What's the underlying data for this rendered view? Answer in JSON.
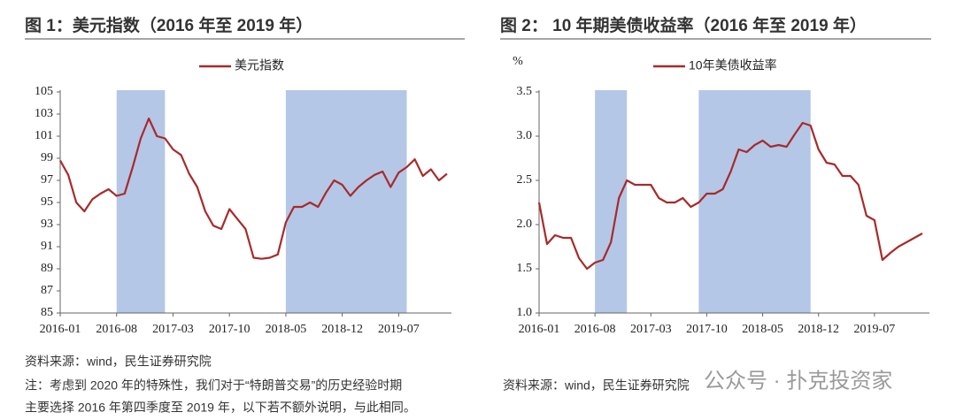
{
  "chart_data": [
    {
      "type": "line",
      "title": "图 1：美元指数（2016 年至 2019 年）",
      "x": [
        "2016-01",
        "2016-02",
        "2016-03",
        "2016-04",
        "2016-05",
        "2016-06",
        "2016-07",
        "2016-08",
        "2016-09",
        "2016-10",
        "2016-11",
        "2016-12",
        "2017-01",
        "2017-02",
        "2017-03",
        "2017-04",
        "2017-05",
        "2017-06",
        "2017-07",
        "2017-08",
        "2017-09",
        "2017-10",
        "2017-11",
        "2017-12",
        "2018-01",
        "2018-02",
        "2018-03",
        "2018-04",
        "2018-05",
        "2018-06",
        "2018-07",
        "2018-08",
        "2018-09",
        "2018-10",
        "2018-11",
        "2018-12",
        "2019-01",
        "2019-02",
        "2019-03",
        "2019-04",
        "2019-05",
        "2019-06",
        "2019-07",
        "2019-08",
        "2019-09",
        "2019-10",
        "2019-11",
        "2019-12",
        "2020-01"
      ],
      "series": [
        {
          "name": "美元指数",
          "color": "#a82a2a",
          "values": [
            98.8,
            97.5,
            95.0,
            94.2,
            95.3,
            95.8,
            96.2,
            95.6,
            95.8,
            98.2,
            100.8,
            102.6,
            101.0,
            100.8,
            99.8,
            99.3,
            97.6,
            96.4,
            94.2,
            92.9,
            92.6,
            94.4,
            93.5,
            92.6,
            90.0,
            89.9,
            90.0,
            90.3,
            93.2,
            94.6,
            94.6,
            95.0,
            94.6,
            95.9,
            97.0,
            96.6,
            95.6,
            96.4,
            97.0,
            97.5,
            97.8,
            96.4,
            97.7,
            98.2,
            98.9,
            97.4,
            98.0,
            97.0,
            97.6
          ]
        }
      ],
      "shaded_periods": [
        {
          "start": "2016-08",
          "end": "2017-02"
        },
        {
          "start": "2018-05",
          "end": "2019-08"
        }
      ],
      "ylim": [
        85,
        105
      ],
      "yticks": [
        85,
        87,
        89,
        91,
        93,
        95,
        97,
        99,
        101,
        103,
        105
      ],
      "xticks": [
        "2016-01",
        "2016-08",
        "2017-03",
        "2017-10",
        "2018-05",
        "2018-12",
        "2019-07"
      ],
      "source": "资料来源：wind，民生证券研究院",
      "note": [
        "注：考虑到 2020 年的特殊性，我们对于“特朗普交易”的历史经验时期",
        "主要选择 2016 年第四季度至 2019 年，以下若不额外说明，与此相同。"
      ]
    },
    {
      "type": "line",
      "title": "图 2：   10 年期美债收益率（2016 年至 2019 年）",
      "y_label": "%",
      "x": [
        "2016-01",
        "2016-02",
        "2016-03",
        "2016-04",
        "2016-05",
        "2016-06",
        "2016-07",
        "2016-08",
        "2016-09",
        "2016-10",
        "2016-11",
        "2016-12",
        "2017-01",
        "2017-02",
        "2017-03",
        "2017-04",
        "2017-05",
        "2017-06",
        "2017-07",
        "2017-08",
        "2017-09",
        "2017-10",
        "2017-11",
        "2017-12",
        "2018-01",
        "2018-02",
        "2018-03",
        "2018-04",
        "2018-05",
        "2018-06",
        "2018-07",
        "2018-08",
        "2018-09",
        "2018-10",
        "2018-11",
        "2018-12",
        "2019-01",
        "2019-02",
        "2019-03",
        "2019-04",
        "2019-05",
        "2019-06",
        "2019-07",
        "2019-08",
        "2019-09",
        "2019-10",
        "2019-11",
        "2019-12",
        "2020-01"
      ],
      "series": [
        {
          "name": "10年美债收益率",
          "color": "#a82a2a",
          "values": [
            2.25,
            1.78,
            1.88,
            1.85,
            1.85,
            1.62,
            1.5,
            1.57,
            1.6,
            1.8,
            2.3,
            2.5,
            2.45,
            2.45,
            2.45,
            2.3,
            2.25,
            2.25,
            2.3,
            2.2,
            2.25,
            2.35,
            2.35,
            2.4,
            2.6,
            2.85,
            2.82,
            2.9,
            2.95,
            2.88,
            2.9,
            2.88,
            3.02,
            3.15,
            3.12,
            2.85,
            2.7,
            2.68,
            2.55,
            2.55,
            2.45,
            2.1,
            2.05,
            1.6,
            1.68,
            1.75,
            1.8,
            1.85,
            1.9
          ]
        }
      ],
      "shaded_periods": [
        {
          "start": "2016-08",
          "end": "2016-12"
        },
        {
          "start": "2017-09",
          "end": "2018-11"
        }
      ],
      "ylim": [
        1,
        3.5
      ],
      "yticks": [
        {
          "value": 1,
          "label": "1.0"
        },
        1.5,
        {
          "value": 2,
          "label": "2.0"
        },
        2.5,
        {
          "value": 3,
          "label": "3.0"
        },
        3.5
      ],
      "xticks": [
        "2016-01",
        "2016-08",
        "2017-03",
        "2017-10",
        "2018-05",
        "2018-12",
        "2019-07"
      ],
      "source": "资料来源：wind，民生证券研究院"
    }
  ],
  "watermark": "公众号 · 扑克投资家"
}
